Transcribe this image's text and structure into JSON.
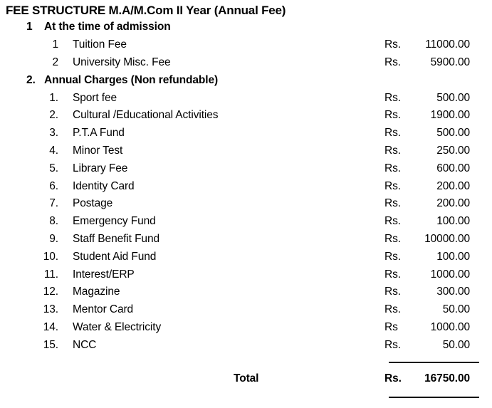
{
  "document": {
    "title": "FEE STRUCTURE M.A/M.Com II Year (Annual Fee)",
    "sections": [
      {
        "number": "1",
        "heading": "At the time of admission",
        "items": [
          {
            "number": "1",
            "label": "Tuition Fee",
            "currency": "Rs.",
            "amount": "11000.00"
          },
          {
            "number": "2",
            "label": "University Misc. Fee",
            "currency": "Rs.",
            "amount": "5900.00"
          }
        ]
      },
      {
        "number": "2.",
        "heading": "Annual Charges (Non refundable)",
        "items": [
          {
            "number": "1.",
            "label": "Sport fee",
            "currency": "Rs.",
            "amount": "500.00"
          },
          {
            "number": "2.",
            "label": "Cultural /Educational Activities",
            "currency": "Rs.",
            "amount": "1900.00"
          },
          {
            "number": "3.",
            "label": "P.T.A Fund",
            "currency": "Rs.",
            "amount": "500.00"
          },
          {
            "number": "4.",
            "label": "Minor Test",
            "currency": "Rs.",
            "amount": "250.00"
          },
          {
            "number": "5.",
            "label": "Library Fee",
            "currency": "Rs.",
            "amount": "600.00"
          },
          {
            "number": "6.",
            "label": "Identity Card",
            "currency": "Rs.",
            "amount": "200.00"
          },
          {
            "number": "7.",
            "label": "Postage",
            "currency": "Rs.",
            "amount": "200.00"
          },
          {
            "number": "8.",
            "label": "Emergency Fund",
            "currency": "Rs.",
            "amount": "100.00"
          },
          {
            "number": "9.",
            "label": "Staff Benefit Fund",
            "currency": "Rs.",
            "amount": "10000.00"
          },
          {
            "number": "10.",
            "label": "Student Aid Fund",
            "currency": "Rs.",
            "amount": "100.00"
          },
          {
            "number": "11.",
            "label": "Interest/ERP",
            "currency": "Rs.",
            "amount": "1000.00"
          },
          {
            "number": "12.",
            "label": "Magazine",
            "currency": "Rs.",
            "amount": "300.00"
          },
          {
            "number": "13.",
            "label": "Mentor Card",
            "currency": "Rs.",
            "amount": "50.00"
          },
          {
            "number": "14.",
            "label": "Water & Electricity",
            "currency": "Rs",
            "amount": "1000.00"
          },
          {
            "number": "15.",
            "label": "NCC",
            "currency": "Rs.",
            "amount": "50.00"
          }
        ]
      }
    ],
    "total": {
      "label": "Total",
      "currency": "Rs.",
      "amount": "16750.00"
    }
  },
  "colors": {
    "text": "#000000",
    "background": "#ffffff",
    "rule": "#000000"
  }
}
